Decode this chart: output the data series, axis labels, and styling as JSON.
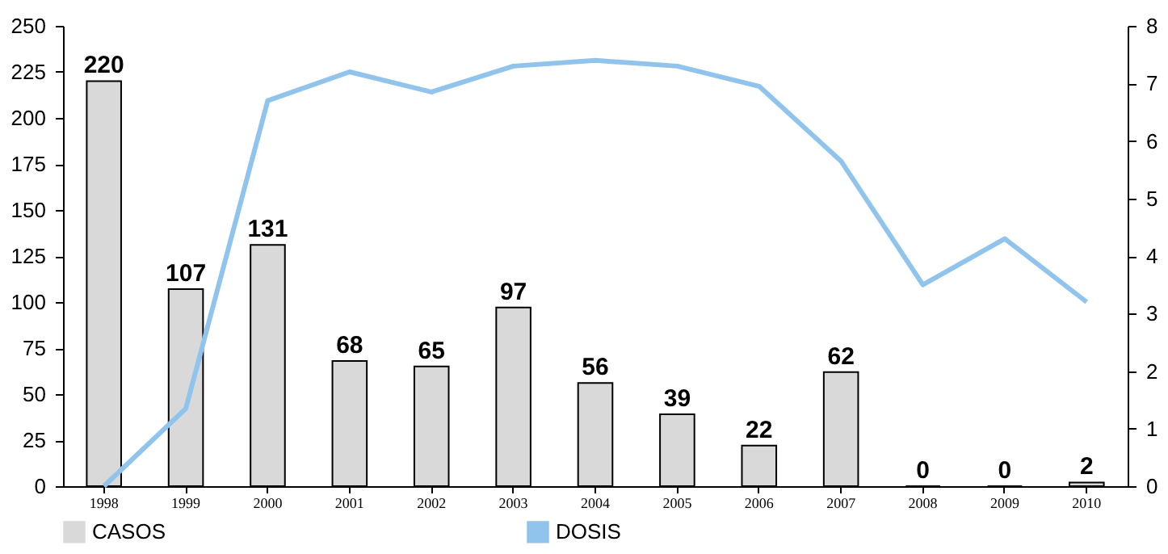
{
  "chart_data": {
    "type": "bar",
    "categories": [
      "1998",
      "1999",
      "2000",
      "2001",
      "2002",
      "2003",
      "2004",
      "2005",
      "2006",
      "2007",
      "2008",
      "2009",
      "2010"
    ],
    "series": [
      {
        "name": "CASOS",
        "color": "#d9d9d9",
        "values": [
          220,
          107,
          131,
          68,
          65,
          97,
          56,
          39,
          22,
          62,
          0,
          0,
          2
        ],
        "value_labels": [
          "220",
          "107",
          "131",
          "68",
          "65",
          "97",
          "56",
          "39",
          "22",
          "62",
          "0",
          "0",
          "2"
        ]
      },
      {
        "name": "DOSIS",
        "type": "line",
        "axis": "y2",
        "color": "#91c4ec",
        "values": [
          0,
          1.35,
          6.7,
          7.2,
          6.85,
          7.3,
          7.4,
          7.3,
          6.95,
          5.65,
          3.5,
          4.3,
          3.2
        ]
      }
    ],
    "ylim": [
      0,
      250
    ],
    "yticks": [
      0,
      25,
      50,
      75,
      100,
      125,
      150,
      175,
      200,
      225,
      250
    ],
    "y2lim": [
      0,
      8
    ],
    "y2ticks": [
      0,
      1,
      2,
      3,
      4,
      5,
      6,
      7,
      8
    ],
    "legend": "bottom",
    "grid": false
  }
}
